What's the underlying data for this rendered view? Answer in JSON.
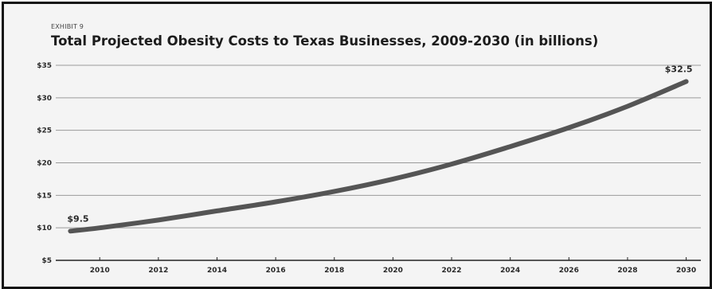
{
  "chart_data": {
    "type": "line",
    "exhibit": "EXHIBIT 9",
    "title": "Total Projected Obesity Costs to Texas Businesses, 2009-2030 (in billions)",
    "xlabel": "",
    "ylabel": "",
    "x": [
      2009,
      2010,
      2012,
      2014,
      2016,
      2018,
      2020,
      2022,
      2024,
      2026,
      2028,
      2030
    ],
    "series": [
      {
        "values": [
          9.5,
          10.0,
          11.2,
          12.6,
          14.0,
          15.6,
          17.5,
          19.8,
          22.5,
          25.4,
          28.7,
          32.5
        ]
      }
    ],
    "xticks": [
      "2010",
      "2012",
      "2014",
      "2016",
      "2018",
      "2020",
      "2022",
      "2024",
      "2026",
      "2028",
      "2030"
    ],
    "yticks": [
      "$5",
      "$10",
      "$15",
      "$20",
      "$25",
      "$30",
      "$35"
    ],
    "ylim": [
      5,
      35
    ],
    "xlim": [
      2008.5,
      2030.5
    ],
    "grid": true,
    "annotations": [
      {
        "text": "$9.5",
        "x": 2009,
        "y": 9.5
      },
      {
        "text": "$32.5",
        "x": 2030,
        "y": 32.5
      }
    ],
    "colors": {
      "line": "#555555",
      "grid": "#9a9a9a",
      "axis": "#222222"
    }
  }
}
